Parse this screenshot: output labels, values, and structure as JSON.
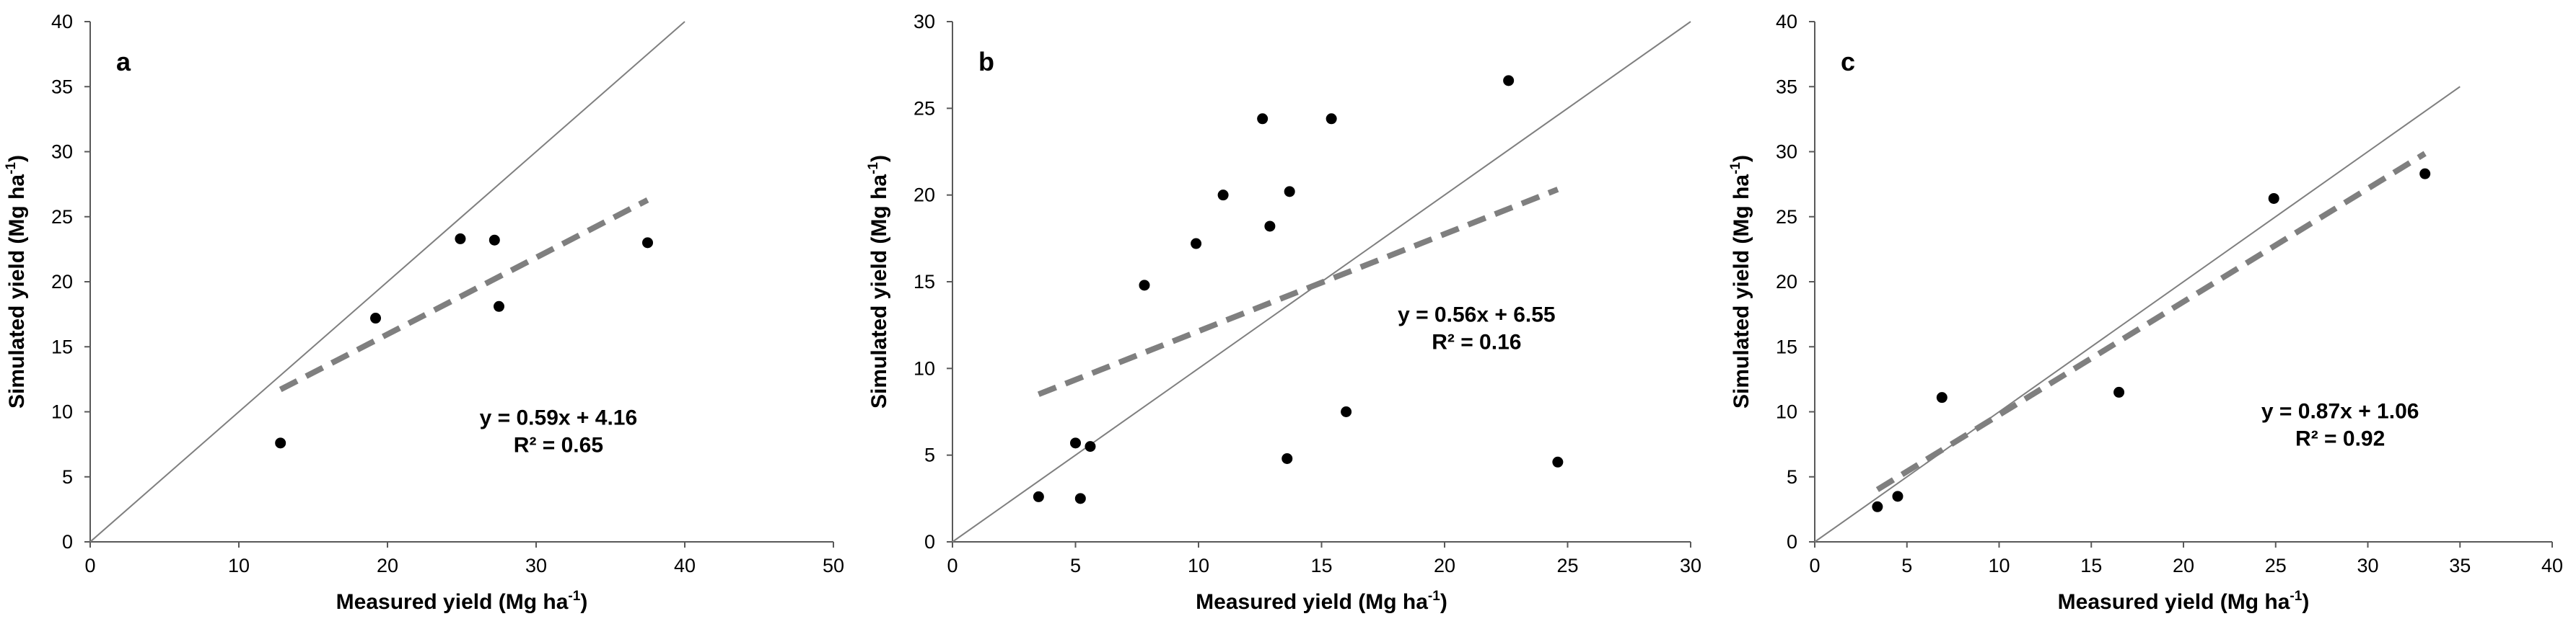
{
  "chart_data": [
    {
      "type": "scatter",
      "panel": "a",
      "xlabel": "Measured yield (Mg ha",
      "ylabel": "Simulated yield  (Mg ha",
      "unit_superscript": "-1",
      "unit_close": ")",
      "xlim": [
        0,
        50
      ],
      "ylim": [
        0,
        40
      ],
      "xticks": [
        "0",
        "10",
        "20",
        "30",
        "40",
        "50"
      ],
      "yticks": [
        "0",
        "5",
        "10",
        "15",
        "20",
        "25",
        "30",
        "35",
        "40"
      ],
      "points": [
        {
          "x": 12.8,
          "y": 7.6
        },
        {
          "x": 19.2,
          "y": 17.2
        },
        {
          "x": 24.9,
          "y": 23.3
        },
        {
          "x": 27.2,
          "y": 23.2
        },
        {
          "x": 27.5,
          "y": 18.1
        },
        {
          "x": 37.5,
          "y": 23.0
        }
      ],
      "one_to_one_line": {
        "from": 0,
        "to": 40
      },
      "trendline": {
        "slope": 0.59,
        "intercept": 4.16,
        "x_start": 12.8,
        "x_end": 37.5
      },
      "equation": "y = 0.59x + 4.16",
      "r_squared": "R² = 0.65",
      "eq_anchor": {
        "x": 31.5,
        "y": 9
      }
    },
    {
      "type": "scatter",
      "panel": "b",
      "xlabel": "Measured yield (Mg ha",
      "ylabel": "Simulated yield (Mg ha",
      "unit_superscript": "-1",
      "unit_close": ")",
      "xlim": [
        0,
        30
      ],
      "ylim": [
        0,
        30
      ],
      "xticks": [
        "0",
        "5",
        "10",
        "15",
        "20",
        "25",
        "30"
      ],
      "yticks": [
        "0",
        "5",
        "10",
        "15",
        "20",
        "25",
        "30"
      ],
      "points": [
        {
          "x": 3.5,
          "y": 2.6
        },
        {
          "x": 5.0,
          "y": 5.7
        },
        {
          "x": 5.2,
          "y": 2.5
        },
        {
          "x": 5.6,
          "y": 5.5
        },
        {
          "x": 7.8,
          "y": 14.8
        },
        {
          "x": 9.9,
          "y": 17.2
        },
        {
          "x": 11.0,
          "y": 20.0
        },
        {
          "x": 12.6,
          "y": 24.4
        },
        {
          "x": 12.9,
          "y": 18.2
        },
        {
          "x": 13.6,
          "y": 4.8
        },
        {
          "x": 13.7,
          "y": 20.2
        },
        {
          "x": 15.4,
          "y": 24.4
        },
        {
          "x": 16.0,
          "y": 7.5
        },
        {
          "x": 22.6,
          "y": 26.6
        },
        {
          "x": 24.6,
          "y": 4.6
        }
      ],
      "one_to_one_line": {
        "from": 0,
        "to": 30
      },
      "trendline": {
        "slope": 0.56,
        "intercept": 6.55,
        "x_start": 3.5,
        "x_end": 24.6
      },
      "equation": "y = 0.56x + 6.55",
      "r_squared": "R² = 0.16",
      "eq_anchor": {
        "x": 21.3,
        "y": 12.7
      }
    },
    {
      "type": "scatter",
      "panel": "c",
      "xlabel": "Measured yield (Mg ha",
      "ylabel": "Simulated yield (Mg ha",
      "unit_superscript": "-1",
      "unit_close": ")",
      "xlim": [
        0,
        40
      ],
      "ylim": [
        0,
        40
      ],
      "xticks": [
        "0",
        "5",
        "10",
        "15",
        "20",
        "25",
        "30",
        "35",
        "40"
      ],
      "yticks": [
        "0",
        "5",
        "10",
        "15",
        "20",
        "25",
        "30",
        "35",
        "40"
      ],
      "points": [
        {
          "x": 3.4,
          "y": 2.7
        },
        {
          "x": 4.5,
          "y": 3.5
        },
        {
          "x": 6.9,
          "y": 11.1
        },
        {
          "x": 16.5,
          "y": 11.5
        },
        {
          "x": 24.9,
          "y": 26.4
        },
        {
          "x": 33.1,
          "y": 28.3
        }
      ],
      "one_to_one_line": {
        "from": 0,
        "to": 35
      },
      "trendline": {
        "slope": 0.87,
        "intercept": 1.06,
        "x_start": 3.4,
        "x_end": 33.1
      },
      "equation": "y = 0.87x + 1.06",
      "r_squared": "R² = 0.92",
      "eq_anchor": {
        "x": 28.5,
        "y": 9.5
      }
    }
  ]
}
